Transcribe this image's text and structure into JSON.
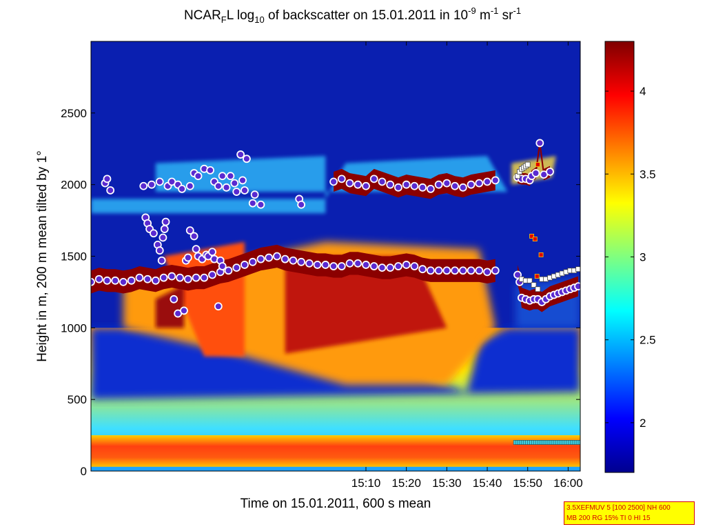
{
  "title_parts": [
    "NCAR",
    "F",
    "L log",
    "10",
    " of backscatter on 15.01.2011 in 10",
    "-9",
    " m",
    "-1",
    " sr",
    "-1"
  ],
  "info_box": [
    "3.5XEFMUV 5 [100 2500] NH 600",
    "MB 200 RG 15% TI 0 HI 15"
  ],
  "chart_data": {
    "type": "heatmap",
    "xlabel": "Time on 15.01.2011, 600 s mean",
    "ylabel": "Height in m, 200 m mean tilted by 1°",
    "x_range_min": [
      842,
      963
    ],
    "x_ticks": [
      "15:10",
      "15:20",
      "15:30",
      "15:40",
      "15:50",
      "16:00"
    ],
    "x_tick_min": [
      910,
      920,
      930,
      940,
      950,
      960
    ],
    "ylim": [
      0,
      3000
    ],
    "y_ticks": [
      0,
      500,
      1000,
      1500,
      2000,
      2500
    ],
    "colorbar": {
      "clim": [
        1.7,
        4.3
      ],
      "ticks": [
        "2",
        "2.5",
        "3",
        "3.5",
        "4"
      ],
      "tick_values": [
        2,
        2.5,
        3,
        3.5,
        4
      ]
    },
    "colors": {
      "background": "#0a1fb0",
      "surface": "#ff3010",
      "layer": "#8b0000",
      "marker_fill": "#5a2ad0",
      "marker_ring": "#ffffff"
    },
    "cloud_base_series": [
      {
        "t": 842.0,
        "h": 1320
      },
      {
        "t": 844.0,
        "h": 1340
      },
      {
        "t": 846.0,
        "h": 1330
      },
      {
        "t": 848.0,
        "h": 1330
      },
      {
        "t": 850.0,
        "h": 1320
      },
      {
        "t": 852.0,
        "h": 1330
      },
      {
        "t": 854.0,
        "h": 1350
      },
      {
        "t": 856.0,
        "h": 1340
      },
      {
        "t": 858.0,
        "h": 1330
      },
      {
        "t": 860.0,
        "h": 1350
      },
      {
        "t": 862.0,
        "h": 1360
      },
      {
        "t": 864.0,
        "h": 1350
      },
      {
        "t": 866.0,
        "h": 1340
      },
      {
        "t": 868.0,
        "h": 1350
      },
      {
        "t": 870.0,
        "h": 1350
      },
      {
        "t": 872.0,
        "h": 1370
      },
      {
        "t": 874.0,
        "h": 1390
      },
      {
        "t": 876.0,
        "h": 1400
      },
      {
        "t": 878.0,
        "h": 1420
      },
      {
        "t": 880.0,
        "h": 1440
      },
      {
        "t": 882.0,
        "h": 1460
      },
      {
        "t": 884.0,
        "h": 1480
      },
      {
        "t": 886.0,
        "h": 1490
      },
      {
        "t": 888.0,
        "h": 1500
      },
      {
        "t": 890.0,
        "h": 1480
      },
      {
        "t": 892.0,
        "h": 1470
      },
      {
        "t": 894.0,
        "h": 1460
      },
      {
        "t": 896.0,
        "h": 1450
      },
      {
        "t": 898.0,
        "h": 1440
      },
      {
        "t": 900.0,
        "h": 1440
      },
      {
        "t": 902.0,
        "h": 1430
      },
      {
        "t": 904.0,
        "h": 1430
      },
      {
        "t": 906.0,
        "h": 1450
      },
      {
        "t": 908.0,
        "h": 1450
      },
      {
        "t": 910.0,
        "h": 1440
      },
      {
        "t": 912.0,
        "h": 1430
      },
      {
        "t": 914.0,
        "h": 1420
      },
      {
        "t": 916.0,
        "h": 1420
      },
      {
        "t": 918.0,
        "h": 1430
      },
      {
        "t": 920.0,
        "h": 1440
      },
      {
        "t": 922.0,
        "h": 1430
      },
      {
        "t": 924.0,
        "h": 1410
      },
      {
        "t": 926.0,
        "h": 1400
      },
      {
        "t": 928.0,
        "h": 1400
      },
      {
        "t": 930.0,
        "h": 1400
      },
      {
        "t": 932.0,
        "h": 1400
      },
      {
        "t": 934.0,
        "h": 1400
      },
      {
        "t": 936.0,
        "h": 1400
      },
      {
        "t": 938.0,
        "h": 1400
      },
      {
        "t": 940.0,
        "h": 1390
      },
      {
        "t": 942.0,
        "h": 1400
      }
    ],
    "upper_layer_series": [
      {
        "t": 902.0,
        "h": 2020
      },
      {
        "t": 904.0,
        "h": 2040
      },
      {
        "t": 906.0,
        "h": 2010
      },
      {
        "t": 908.0,
        "h": 2000
      },
      {
        "t": 910.0,
        "h": 1990
      },
      {
        "t": 912.0,
        "h": 2040
      },
      {
        "t": 914.0,
        "h": 2020
      },
      {
        "t": 916.0,
        "h": 2000
      },
      {
        "t": 918.0,
        "h": 1980
      },
      {
        "t": 920.0,
        "h": 2000
      },
      {
        "t": 922.0,
        "h": 1990
      },
      {
        "t": 924.0,
        "h": 1980
      },
      {
        "t": 926.0,
        "h": 1970
      },
      {
        "t": 928.0,
        "h": 2000
      },
      {
        "t": 930.0,
        "h": 2010
      },
      {
        "t": 932.0,
        "h": 1990
      },
      {
        "t": 934.0,
        "h": 1980
      },
      {
        "t": 936.0,
        "h": 2000
      },
      {
        "t": 938.0,
        "h": 2010
      },
      {
        "t": 940.0,
        "h": 2020
      },
      {
        "t": 942.0,
        "h": 2030
      }
    ],
    "scattered_points": [
      {
        "t": 845.5,
        "h": 2010
      },
      {
        "t": 846.0,
        "h": 2040
      },
      {
        "t": 846.8,
        "h": 1960
      },
      {
        "t": 855.5,
        "h": 1770
      },
      {
        "t": 856.0,
        "h": 1730
      },
      {
        "t": 856.5,
        "h": 1690
      },
      {
        "t": 857.5,
        "h": 1660
      },
      {
        "t": 858.5,
        "h": 1580
      },
      {
        "t": 859.0,
        "h": 1540
      },
      {
        "t": 859.5,
        "h": 1470
      },
      {
        "t": 859.8,
        "h": 1630
      },
      {
        "t": 860.2,
        "h": 1690
      },
      {
        "t": 860.5,
        "h": 1740
      },
      {
        "t": 862.5,
        "h": 1200
      },
      {
        "t": 863.5,
        "h": 1100
      },
      {
        "t": 865.0,
        "h": 1120
      },
      {
        "t": 865.5,
        "h": 1470
      },
      {
        "t": 866.0,
        "h": 1490
      },
      {
        "t": 866.5,
        "h": 1680
      },
      {
        "t": 867.5,
        "h": 1640
      },
      {
        "t": 868.0,
        "h": 1550
      },
      {
        "t": 868.5,
        "h": 1500
      },
      {
        "t": 869.5,
        "h": 1480
      },
      {
        "t": 870.5,
        "h": 1510
      },
      {
        "t": 871.0,
        "h": 1500
      },
      {
        "t": 872.0,
        "h": 1530
      },
      {
        "t": 872.5,
        "h": 1480
      },
      {
        "t": 873.5,
        "h": 1150
      },
      {
        "t": 874.0,
        "h": 1470
      },
      {
        "t": 874.5,
        "h": 1430
      },
      {
        "t": 876.5,
        "h": 2060
      },
      {
        "t": 877.5,
        "h": 2010
      },
      {
        "t": 878.0,
        "h": 1950
      },
      {
        "t": 879.0,
        "h": 2210
      },
      {
        "t": 879.5,
        "h": 2030
      },
      {
        "t": 880.0,
        "h": 1960
      },
      {
        "t": 880.5,
        "h": 2180
      },
      {
        "t": 882.0,
        "h": 1870
      },
      {
        "t": 882.5,
        "h": 1930
      },
      {
        "t": 884.0,
        "h": 1860
      },
      {
        "t": 893.5,
        "h": 1900
      },
      {
        "t": 894.0,
        "h": 1860
      },
      {
        "t": 855.0,
        "h": 1990
      },
      {
        "t": 857.0,
        "h": 2000
      },
      {
        "t": 859.0,
        "h": 2020
      },
      {
        "t": 861.0,
        "h": 1990
      },
      {
        "t": 862.0,
        "h": 2020
      },
      {
        "t": 863.5,
        "h": 2000
      },
      {
        "t": 864.5,
        "h": 1970
      },
      {
        "t": 866.5,
        "h": 1990
      },
      {
        "t": 867.5,
        "h": 2080
      },
      {
        "t": 868.5,
        "h": 2060
      },
      {
        "t": 870.0,
        "h": 2110
      },
      {
        "t": 871.5,
        "h": 2100
      },
      {
        "t": 872.5,
        "h": 2020
      },
      {
        "t": 873.5,
        "h": 1990
      },
      {
        "t": 874.5,
        "h": 2060
      },
      {
        "t": 875.5,
        "h": 1980
      }
    ],
    "late_cloud_series": [
      {
        "t": 947.5,
        "h": 2050
      },
      {
        "t": 948.5,
        "h": 2040
      },
      {
        "t": 949.5,
        "h": 2040
      },
      {
        "t": 950.5,
        "h": 2030
      },
      {
        "t": 951.0,
        "h": 2060
      },
      {
        "t": 952.0,
        "h": 2080
      },
      {
        "t": 953.0,
        "h": 2290
      },
      {
        "t": 954.0,
        "h": 2070
      },
      {
        "t": 955.5,
        "h": 2090
      }
    ],
    "late_low_series": [
      {
        "t": 947.5,
        "h": 1370
      },
      {
        "t": 948.0,
        "h": 1320
      },
      {
        "t": 948.5,
        "h": 1210
      },
      {
        "t": 949.5,
        "h": 1200
      },
      {
        "t": 950.5,
        "h": 1190
      },
      {
        "t": 951.5,
        "h": 1200
      },
      {
        "t": 952.5,
        "h": 1200
      },
      {
        "t": 953.5,
        "h": 1180
      },
      {
        "t": 954.5,
        "h": 1200
      },
      {
        "t": 955.5,
        "h": 1220
      },
      {
        "t": 956.5,
        "h": 1230
      },
      {
        "t": 957.5,
        "h": 1240
      },
      {
        "t": 958.5,
        "h": 1250
      },
      {
        "t": 959.5,
        "h": 1260
      },
      {
        "t": 960.5,
        "h": 1270
      },
      {
        "t": 961.5,
        "h": 1280
      },
      {
        "t": 962.5,
        "h": 1290
      }
    ],
    "white_squares": [
      {
        "t": 947.5,
        "h": 2060
      },
      {
        "t": 948.0,
        "h": 2090
      },
      {
        "t": 948.5,
        "h": 2110
      },
      {
        "t": 949.0,
        "h": 2120
      },
      {
        "t": 949.5,
        "h": 2130
      },
      {
        "t": 950.0,
        "h": 2140
      },
      {
        "t": 948.5,
        "h": 1340
      },
      {
        "t": 949.5,
        "h": 1330
      },
      {
        "t": 950.5,
        "h": 1330
      },
      {
        "t": 951.5,
        "h": 1300
      },
      {
        "t": 952.5,
        "h": 1270
      },
      {
        "t": 953.5,
        "h": 1340
      },
      {
        "t": 954.5,
        "h": 1340
      },
      {
        "t": 955.5,
        "h": 1350
      },
      {
        "t": 956.5,
        "h": 1360
      },
      {
        "t": 957.5,
        "h": 1370
      },
      {
        "t": 958.5,
        "h": 1380
      },
      {
        "t": 959.5,
        "h": 1390
      },
      {
        "t": 960.5,
        "h": 1400
      },
      {
        "t": 961.5,
        "h": 1400
      },
      {
        "t": 962.5,
        "h": 1410
      }
    ],
    "red_squares": [
      {
        "t": 951.0,
        "h": 1640
      },
      {
        "t": 951.8,
        "h": 1620
      },
      {
        "t": 953.3,
        "h": 1510
      },
      {
        "t": 952.3,
        "h": 1360
      },
      {
        "t": 952.5,
        "h": 2140
      }
    ],
    "bottom_squares": {
      "t_start": 947.0,
      "t_end": 963.0,
      "h": 200
    }
  }
}
